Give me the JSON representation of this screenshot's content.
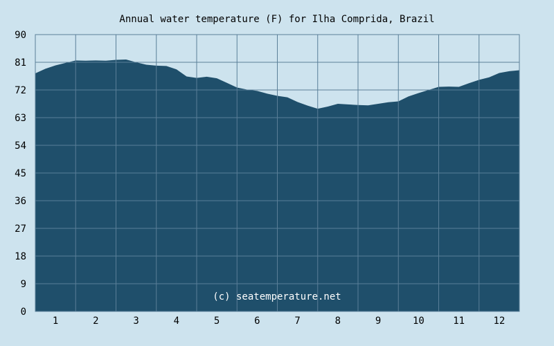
{
  "colors": {
    "background": "#cde3ee",
    "area_fill": "#1f4f6b",
    "grid": "#5a7f98",
    "text": "#000000",
    "watermark": "#ffffff"
  },
  "watermark": "(c) seatemperature.net",
  "chart_data": {
    "type": "area",
    "title": "Annual water temperature (F) for Ilha Comprida, Brazil",
    "xlabel": "",
    "ylabel": "",
    "ylim": [
      0,
      90
    ],
    "xlim": [
      0.5,
      12.5
    ],
    "grid": true,
    "y_ticks": [
      "0",
      "9",
      "18",
      "27",
      "36",
      "45",
      "54",
      "63",
      "72",
      "81",
      "90"
    ],
    "x_ticks": [
      "1",
      "2",
      "3",
      "4",
      "5",
      "6",
      "7",
      "8",
      "9",
      "10",
      "11",
      "12"
    ],
    "x": [
      0.5,
      0.75,
      1.0,
      1.25,
      1.5,
      1.75,
      2.0,
      2.25,
      2.5,
      2.75,
      3.0,
      3.25,
      3.5,
      3.75,
      4.0,
      4.25,
      4.5,
      4.75,
      5.0,
      5.25,
      5.5,
      5.75,
      6.0,
      6.25,
      6.5,
      6.75,
      7.0,
      7.25,
      7.5,
      7.75,
      8.0,
      8.25,
      8.5,
      8.75,
      9.0,
      9.25,
      9.5,
      9.75,
      10.0,
      10.25,
      10.5,
      10.75,
      11.0,
      11.25,
      11.5,
      11.75,
      12.0,
      12.25,
      12.5
    ],
    "values": [
      77.4,
      78.9,
      80.0,
      80.8,
      81.6,
      81.5,
      81.6,
      81.5,
      81.8,
      81.9,
      81.0,
      80.2,
      79.9,
      79.8,
      78.7,
      76.4,
      75.9,
      76.3,
      75.8,
      74.3,
      72.8,
      72.1,
      71.7,
      70.8,
      70.1,
      69.6,
      68.1,
      66.9,
      65.9,
      66.6,
      67.5,
      67.3,
      67.1,
      67.0,
      67.5,
      68.0,
      68.3,
      69.9,
      71.0,
      72.0,
      73.0,
      73.1,
      73.0,
      74.2,
      75.3,
      76.1,
      77.5,
      78.1,
      78.4
    ]
  }
}
